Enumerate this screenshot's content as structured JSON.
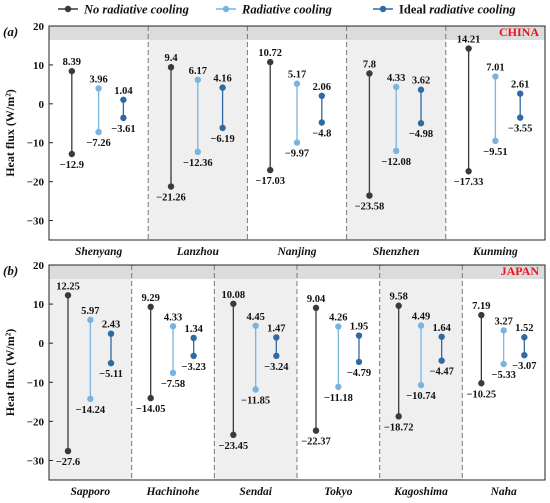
{
  "legend": {
    "items": [
      {
        "label": "No radiative cooling",
        "italic": true,
        "color": "#3a3a3a"
      },
      {
        "label": "Radiative cooling",
        "italic": true,
        "color": "#7ab4de"
      },
      {
        "label": "Ideal",
        "label_rest": "radiative cooling",
        "italic_rest": true,
        "color": "#2f6aa3"
      }
    ]
  },
  "colors": {
    "no_cooling": "#3a3a3a",
    "radiative": "#7ab4de",
    "ideal": "#2f6aa3",
    "shade": "#efefef",
    "top_band": "#dcdcdc",
    "country": "#e8141c"
  },
  "chart_data": [
    {
      "type": "range",
      "panel_label": "(a)",
      "country": "CHINA",
      "ylabel": "Heat flux (W/m²)",
      "ylim": [
        -35,
        20
      ],
      "yticks": [
        -30,
        -20,
        -10,
        0,
        10,
        20
      ],
      "tick_labels": [
        "−30",
        "−20",
        "−10",
        "0",
        "10",
        "20"
      ],
      "shaded_categories": [
        1,
        3
      ],
      "categories": [
        "Shenyang",
        "Lanzhou",
        "Nanjing",
        "Shenzhen",
        "Kunming"
      ],
      "series": [
        {
          "name": "No radiative cooling",
          "max": [
            8.39,
            9.4,
            10.72,
            7.8,
            14.21
          ],
          "min": [
            -12.9,
            -21.26,
            -17.03,
            -23.58,
            -17.33
          ],
          "max_labels": [
            "8.39",
            "9.4",
            "10.72",
            "7.8",
            "14.21"
          ],
          "min_labels": [
            "−12.9",
            "−21.26",
            "−17.03",
            "−23.58",
            "−17.33"
          ]
        },
        {
          "name": "Radiative cooling",
          "max": [
            3.96,
            6.17,
            5.17,
            4.33,
            7.01
          ],
          "min": [
            -7.26,
            -12.36,
            -9.97,
            -12.08,
            -9.51
          ],
          "max_labels": [
            "3.96",
            "6.17",
            "5.17",
            "4.33",
            "7.01"
          ],
          "min_labels": [
            "−7.26",
            "−12.36",
            "−9.97",
            "−12.08",
            "−9.51"
          ]
        },
        {
          "name": "Ideal radiative cooling",
          "max": [
            1.04,
            4.16,
            2.06,
            3.62,
            2.61
          ],
          "min": [
            -3.61,
            -6.19,
            -4.8,
            -4.98,
            -3.55
          ],
          "max_labels": [
            "1.04",
            "4.16",
            "2.06",
            "3.62",
            "2.61"
          ],
          "min_labels": [
            "−3.61",
            "−6.19",
            "−4.8",
            "−4.98",
            "−3.55"
          ]
        }
      ]
    },
    {
      "type": "range",
      "panel_label": "(b)",
      "country": "JAPAN",
      "ylabel": "Heat flux (W/m²)",
      "ylim": [
        -35,
        20
      ],
      "yticks": [
        -30,
        -20,
        -10,
        0,
        10,
        20
      ],
      "tick_labels": [
        "−30",
        "−20",
        "−10",
        "0",
        "10",
        "20"
      ],
      "shaded_categories": [
        0,
        2,
        4
      ],
      "categories": [
        "Sapporo",
        "Hachinohe",
        "Sendai",
        "Tokyo",
        "Kagoshima",
        "Naha"
      ],
      "series": [
        {
          "name": "No radiative cooling",
          "max": [
            12.25,
            9.29,
            10.08,
            9.04,
            9.58,
            7.19
          ],
          "min": [
            -27.6,
            -14.05,
            -23.45,
            -22.37,
            -18.72,
            -10.25
          ],
          "max_labels": [
            "12.25",
            "9.29",
            "10.08",
            "9.04",
            "9.58",
            "7.19"
          ],
          "min_labels": [
            "−27.6",
            "−14.05",
            "−23.45",
            "−22.37",
            "−18.72",
            "−10.25"
          ]
        },
        {
          "name": "Radiative cooling",
          "max": [
            5.97,
            4.33,
            4.45,
            4.26,
            4.49,
            3.27
          ],
          "min": [
            -14.24,
            -7.58,
            -11.85,
            -11.18,
            -10.74,
            -5.33
          ],
          "max_labels": [
            "5.97",
            "4.33",
            "4.45",
            "4.26",
            "4.49",
            "3.27"
          ],
          "min_labels": [
            "−14.24",
            "−7.58",
            "−11.85",
            "−11.18",
            "−10.74",
            "−5.33"
          ]
        },
        {
          "name": "Ideal radiative cooling",
          "max": [
            2.43,
            1.34,
            1.47,
            1.95,
            1.64,
            1.52
          ],
          "min": [
            -5.11,
            -3.23,
            -3.24,
            -4.79,
            -4.47,
            -3.07
          ],
          "max_labels": [
            "2.43",
            "1.34",
            "1.47",
            "1.95",
            "1.64",
            "1.52"
          ],
          "min_labels": [
            "−5.11",
            "−3.23",
            "−3.24",
            "−4.79",
            "−4.47",
            "−3.07"
          ]
        }
      ]
    }
  ]
}
